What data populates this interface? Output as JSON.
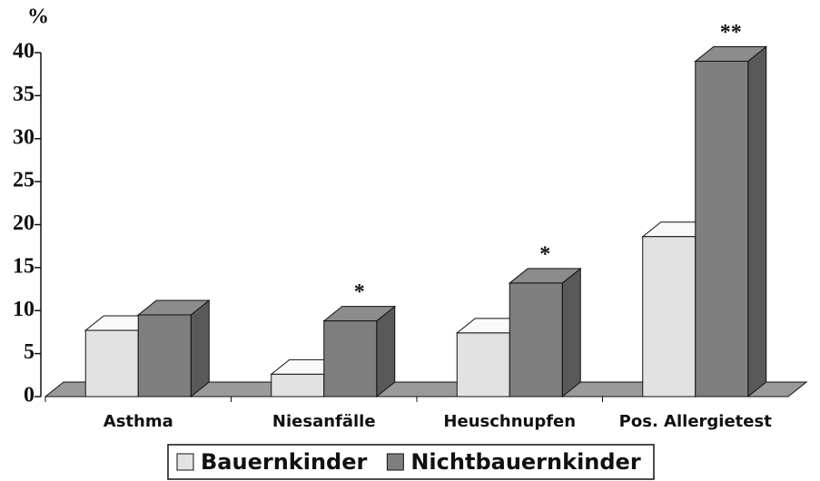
{
  "chart_data": {
    "type": "bar3d",
    "y_label": "%",
    "categories": [
      "Asthma",
      "Niesanfälle",
      "Heuschnupfen",
      "Pos. Allergietest"
    ],
    "series": [
      {
        "name": "Bauernkinder",
        "color": "#e2e2e2",
        "values": [
          7.7,
          2.6,
          7.4,
          18.6
        ]
      },
      {
        "name": "Nichtbauernkinder",
        "color": "#7f7f7f",
        "values": [
          9.5,
          8.8,
          13.2,
          39
        ]
      }
    ],
    "annotations": [
      {
        "text": "*",
        "category": 1
      },
      {
        "text": "*",
        "category": 2
      },
      {
        "text": "**",
        "category": 3
      }
    ],
    "ylim": [
      0,
      40
    ],
    "yticks": [
      0,
      5,
      10,
      15,
      20,
      25,
      30,
      35,
      40
    ],
    "legend": "bottom"
  }
}
